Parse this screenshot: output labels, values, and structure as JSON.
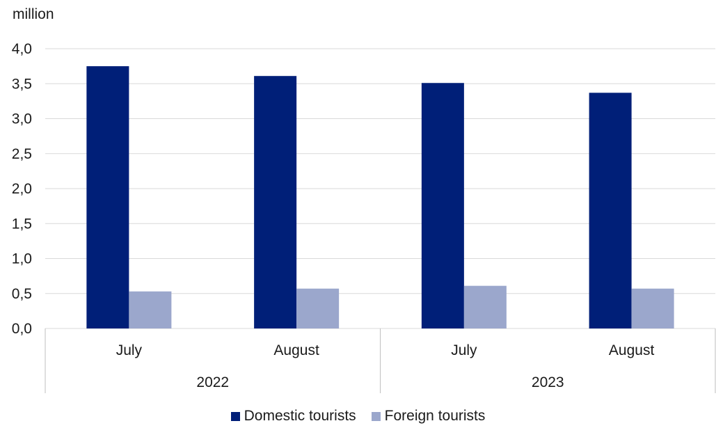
{
  "chart_data": {
    "type": "bar",
    "unit_label": "million",
    "groups": [
      {
        "label": "2022",
        "categories": [
          "July",
          "August"
        ]
      },
      {
        "label": "2023",
        "categories": [
          "July",
          "August"
        ]
      }
    ],
    "categories": [
      "July",
      "August",
      "July",
      "August"
    ],
    "series": [
      {
        "name": "Domestic tourists",
        "color": "#001f78",
        "values": [
          3.75,
          3.61,
          3.51,
          3.37
        ]
      },
      {
        "name": "Foreign tourists",
        "color": "#9ba7cc",
        "values": [
          0.53,
          0.57,
          0.61,
          0.57
        ]
      }
    ],
    "ylim": [
      0,
      4.0
    ],
    "yticks": [
      "0,0",
      "0,5",
      "1,0",
      "1,5",
      "2,0",
      "2,5",
      "3,0",
      "3,5",
      "4,0"
    ],
    "grid": true,
    "legend_position": "bottom"
  }
}
